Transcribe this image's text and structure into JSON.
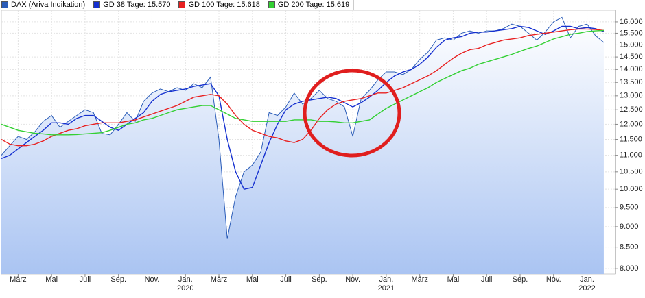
{
  "chart_data": {
    "type": "line",
    "categories": [
      null,
      null,
      "März",
      null,
      null,
      null,
      "Mai",
      null,
      null,
      null,
      "Juli",
      null,
      null,
      null,
      "Sep.",
      null,
      null,
      null,
      "Nov.",
      null,
      null,
      null,
      "Jan.\n2020",
      null,
      null,
      null,
      "März",
      null,
      null,
      null,
      "Mai",
      null,
      null,
      null,
      "Juli",
      null,
      null,
      null,
      "Sep.",
      null,
      null,
      null,
      "Nov.",
      null,
      null,
      null,
      "Jan.\n2021",
      null,
      null,
      null,
      "März",
      null,
      null,
      null,
      "Mai",
      null,
      null,
      null,
      "Juli",
      null,
      null,
      null,
      "Sep.",
      null,
      null,
      null,
      "Nov.",
      null,
      null,
      null,
      "Jan.\n2022",
      null,
      null
    ],
    "series": [
      {
        "name": "DAX (Ariva Indikation)",
        "color": "#2a5cb8",
        "area": true,
        "values": [
          11000,
          11300,
          11600,
          11500,
          11750,
          12100,
          12300,
          11900,
          12100,
          12300,
          12500,
          12400,
          11700,
          11650,
          12000,
          12400,
          12100,
          12800,
          13100,
          13250,
          13150,
          13300,
          13200,
          13450,
          13300,
          13700,
          11500,
          8700,
          9800,
          10500,
          10700,
          11100,
          12400,
          12300,
          12600,
          13100,
          12700,
          12900,
          13200,
          12900,
          12800,
          12600,
          11600,
          12900,
          13200,
          13600,
          13900,
          13900,
          13800,
          14000,
          14400,
          14700,
          15200,
          15300,
          15200,
          15500,
          15600,
          15500,
          15600,
          15600,
          15700,
          15900,
          15800,
          15500,
          15200,
          15550,
          16000,
          16200,
          15300,
          15800,
          15900,
          15400,
          15100
        ]
      },
      {
        "name": "GD 38 Tage: 15.570",
        "color": "#1530d0",
        "values": [
          10900,
          11000,
          11200,
          11400,
          11600,
          11800,
          12050,
          12050,
          12000,
          12200,
          12300,
          12300,
          12100,
          11900,
          11800,
          12000,
          12200,
          12400,
          12800,
          13050,
          13150,
          13200,
          13250,
          13350,
          13400,
          13450,
          13000,
          11500,
          10500,
          10000,
          10050,
          10700,
          11400,
          12000,
          12500,
          12700,
          12800,
          12850,
          12900,
          12950,
          12900,
          12750,
          12600,
          12750,
          12950,
          13200,
          13500,
          13750,
          13900,
          14000,
          14200,
          14500,
          14900,
          15200,
          15300,
          15350,
          15500,
          15550,
          15550,
          15600,
          15650,
          15700,
          15800,
          15750,
          15600,
          15450,
          15600,
          15800,
          15800,
          15700,
          15750,
          15700,
          15570
        ]
      },
      {
        "name": "GD 100 Tage: 15.618",
        "color": "#e82020",
        "values": [
          11500,
          11350,
          11300,
          11300,
          11350,
          11450,
          11600,
          11700,
          11800,
          11850,
          11950,
          12000,
          12050,
          12050,
          12050,
          12100,
          12150,
          12250,
          12350,
          12450,
          12550,
          12650,
          12800,
          12950,
          13000,
          13050,
          13000,
          12700,
          12300,
          12000,
          11800,
          11700,
          11600,
          11550,
          11450,
          11400,
          11500,
          11800,
          12200,
          12500,
          12700,
          12800,
          12850,
          12900,
          13000,
          13100,
          13100,
          13200,
          13300,
          13450,
          13600,
          13750,
          13950,
          14200,
          14450,
          14650,
          14800,
          14850,
          15000,
          15100,
          15200,
          15250,
          15300,
          15400,
          15450,
          15500,
          15550,
          15600,
          15650,
          15680,
          15680,
          15660,
          15618
        ]
      },
      {
        "name": "GD 200 Tage: 15.619",
        "color": "#33d033",
        "values": [
          12000,
          11900,
          11800,
          11750,
          11700,
          11680,
          11650,
          11650,
          11650,
          11660,
          11680,
          11700,
          11720,
          11800,
          11900,
          12000,
          12050,
          12150,
          12200,
          12300,
          12400,
          12500,
          12550,
          12600,
          12650,
          12650,
          12500,
          12350,
          12200,
          12150,
          12100,
          12100,
          12100,
          12100,
          12100,
          12150,
          12150,
          12150,
          12100,
          12100,
          12080,
          12050,
          12050,
          12100,
          12150,
          12350,
          12550,
          12700,
          12850,
          13000,
          13150,
          13300,
          13500,
          13650,
          13800,
          13950,
          14050,
          14200,
          14300,
          14400,
          14500,
          14600,
          14730,
          14850,
          14950,
          15100,
          15250,
          15350,
          15450,
          15500,
          15570,
          15600,
          15619
        ]
      }
    ],
    "ylim": [
      7880,
      16530
    ],
    "log_scale": true,
    "grid": true,
    "legend": "top-left",
    "yticks": [
      {
        "value": 8000,
        "label": "8.000"
      },
      {
        "value": 8500,
        "label": "8.500"
      },
      {
        "value": 9000,
        "label": "9.000"
      },
      {
        "value": 9500,
        "label": "9.500"
      },
      {
        "value": 10000,
        "label": "10.000"
      },
      {
        "value": 10500,
        "label": "10.500"
      },
      {
        "value": 11000,
        "label": "11.000"
      },
      {
        "value": 11500,
        "label": "11.500"
      },
      {
        "value": 12000,
        "label": "12.000"
      },
      {
        "value": 12500,
        "label": "12.500"
      },
      {
        "value": 13000,
        "label": "13.000"
      },
      {
        "value": 13500,
        "label": "13.500"
      },
      {
        "value": 14000,
        "label": "14.000"
      },
      {
        "value": 14500,
        "label": "14.500"
      },
      {
        "value": 15000,
        "label": "15.000"
      },
      {
        "value": 15500,
        "label": "15.500"
      },
      {
        "value": 16000,
        "label": "16.000"
      }
    ]
  }
}
